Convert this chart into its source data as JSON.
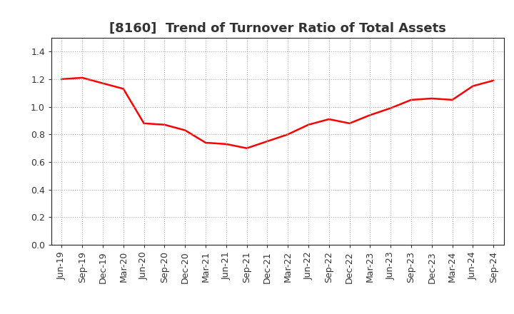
{
  "title": "[8160]  Trend of Turnover Ratio of Total Assets",
  "x_labels": [
    "Jun-19",
    "Sep-19",
    "Dec-19",
    "Mar-20",
    "Jun-20",
    "Sep-20",
    "Dec-20",
    "Mar-21",
    "Jun-21",
    "Sep-21",
    "Dec-21",
    "Mar-22",
    "Jun-22",
    "Sep-22",
    "Dec-22",
    "Mar-23",
    "Jun-23",
    "Sep-23",
    "Dec-23",
    "Mar-24",
    "Jun-24",
    "Sep-24"
  ],
  "values": [
    1.2,
    1.21,
    1.17,
    1.13,
    0.88,
    0.87,
    0.83,
    0.74,
    0.73,
    0.7,
    0.75,
    0.8,
    0.87,
    0.91,
    0.88,
    0.94,
    0.99,
    1.05,
    1.06,
    1.05,
    1.15,
    1.19
  ],
  "line_color": "#ff0000",
  "line_width": 1.8,
  "ylim": [
    0.0,
    1.5
  ],
  "yticks": [
    0.0,
    0.2,
    0.4,
    0.6,
    0.8,
    1.0,
    1.2,
    1.4
  ],
  "grid_color": "#aaaaaa",
  "background_color": "#ffffff",
  "title_fontsize": 13,
  "tick_fontsize": 9,
  "title_color": "#333333"
}
